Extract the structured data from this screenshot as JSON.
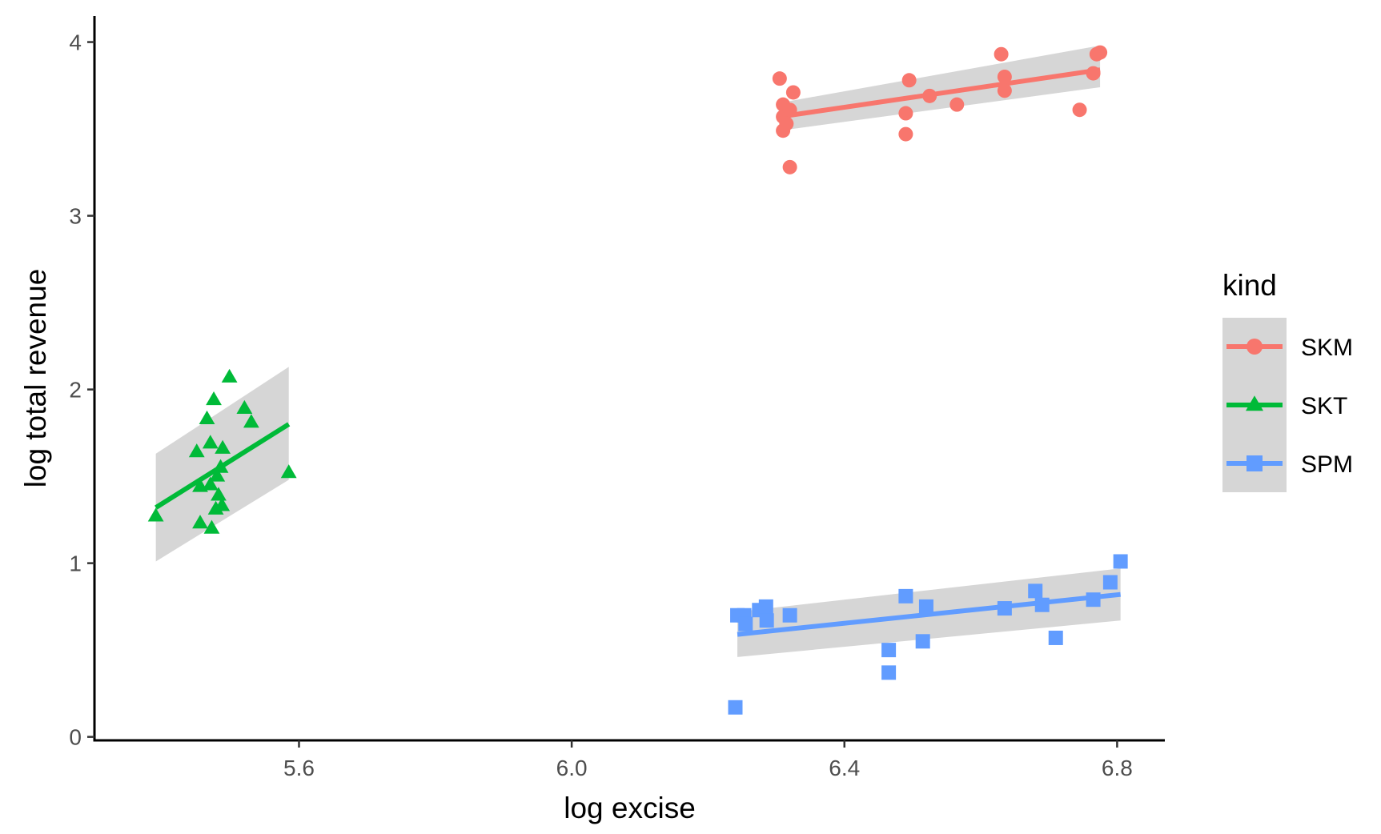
{
  "chart_data": {
    "type": "scatter",
    "title": "",
    "xlabel": "log excise",
    "ylabel": "log total revenue",
    "xlim": [
      5.3,
      6.87
    ],
    "ylim": [
      -0.02,
      4.15
    ],
    "x_ticks": [
      5.6,
      6.0,
      6.4,
      6.8
    ],
    "x_tick_labels": [
      "5.6",
      "6.0",
      "6.4",
      "6.8"
    ],
    "y_ticks": [
      0,
      1,
      2,
      3,
      4
    ],
    "y_tick_labels": [
      "0",
      "1",
      "2",
      "3",
      "4"
    ],
    "grid": false,
    "legend": {
      "title": "kind",
      "position": "right"
    },
    "smoothing": "linear fit with gray confidence band",
    "series": [
      {
        "name": "SKM",
        "color": "#F8766D",
        "marker": "circle",
        "points": [
          [
            6.305,
            3.79
          ],
          [
            6.31,
            3.64
          ],
          [
            6.31,
            3.57
          ],
          [
            6.31,
            3.49
          ],
          [
            6.315,
            3.53
          ],
          [
            6.32,
            3.61
          ],
          [
            6.325,
            3.71
          ],
          [
            6.32,
            3.28
          ],
          [
            6.49,
            3.59
          ],
          [
            6.49,
            3.47
          ],
          [
            6.495,
            3.78
          ],
          [
            6.525,
            3.69
          ],
          [
            6.565,
            3.64
          ],
          [
            6.63,
            3.93
          ],
          [
            6.635,
            3.8
          ],
          [
            6.635,
            3.72
          ],
          [
            6.745,
            3.61
          ],
          [
            6.765,
            3.82
          ],
          [
            6.77,
            3.93
          ],
          [
            6.775,
            3.94
          ]
        ],
        "fit_x": [
          6.305,
          6.775
        ],
        "fit_y": [
          3.57,
          3.84
        ],
        "band_lower": [
          3.49,
          3.74
        ],
        "band_upper": [
          3.65,
          3.98
        ]
      },
      {
        "name": "SKT",
        "color": "#00BA38",
        "marker": "triangle",
        "points": [
          [
            5.39,
            1.27
          ],
          [
            5.45,
            1.64
          ],
          [
            5.455,
            1.44
          ],
          [
            5.455,
            1.23
          ],
          [
            5.465,
            1.83
          ],
          [
            5.47,
            1.69
          ],
          [
            5.47,
            1.45
          ],
          [
            5.472,
            1.2
          ],
          [
            5.475,
            1.94
          ],
          [
            5.478,
            1.31
          ],
          [
            5.48,
            1.5
          ],
          [
            5.482,
            1.39
          ],
          [
            5.485,
            1.55
          ],
          [
            5.487,
            1.33
          ],
          [
            5.488,
            1.66
          ],
          [
            5.498,
            2.07
          ],
          [
            5.52,
            1.89
          ],
          [
            5.53,
            1.81
          ],
          [
            5.585,
            1.52
          ]
        ],
        "fit_x": [
          5.39,
          5.585
        ],
        "fit_y": [
          1.32,
          1.8
        ],
        "band_lower": [
          1.01,
          1.48
        ],
        "band_upper": [
          1.63,
          2.13
        ]
      },
      {
        "name": "SPM",
        "color": "#619CFF",
        "marker": "square",
        "points": [
          [
            6.24,
            0.17
          ],
          [
            6.243,
            0.7
          ],
          [
            6.253,
            0.7
          ],
          [
            6.255,
            0.65
          ],
          [
            6.275,
            0.73
          ],
          [
            6.285,
            0.75
          ],
          [
            6.286,
            0.67
          ],
          [
            6.32,
            0.7
          ],
          [
            6.465,
            0.5
          ],
          [
            6.465,
            0.37
          ],
          [
            6.49,
            0.81
          ],
          [
            6.515,
            0.55
          ],
          [
            6.52,
            0.75
          ],
          [
            6.635,
            0.74
          ],
          [
            6.68,
            0.84
          ],
          [
            6.69,
            0.76
          ],
          [
            6.71,
            0.57
          ],
          [
            6.765,
            0.79
          ],
          [
            6.79,
            0.89
          ],
          [
            6.805,
            1.01
          ]
        ],
        "fit_x": [
          6.243,
          6.805
        ],
        "fit_y": [
          0.59,
          0.82
        ],
        "band_lower": [
          0.46,
          0.67
        ],
        "band_upper": [
          0.72,
          0.97
        ]
      }
    ]
  }
}
